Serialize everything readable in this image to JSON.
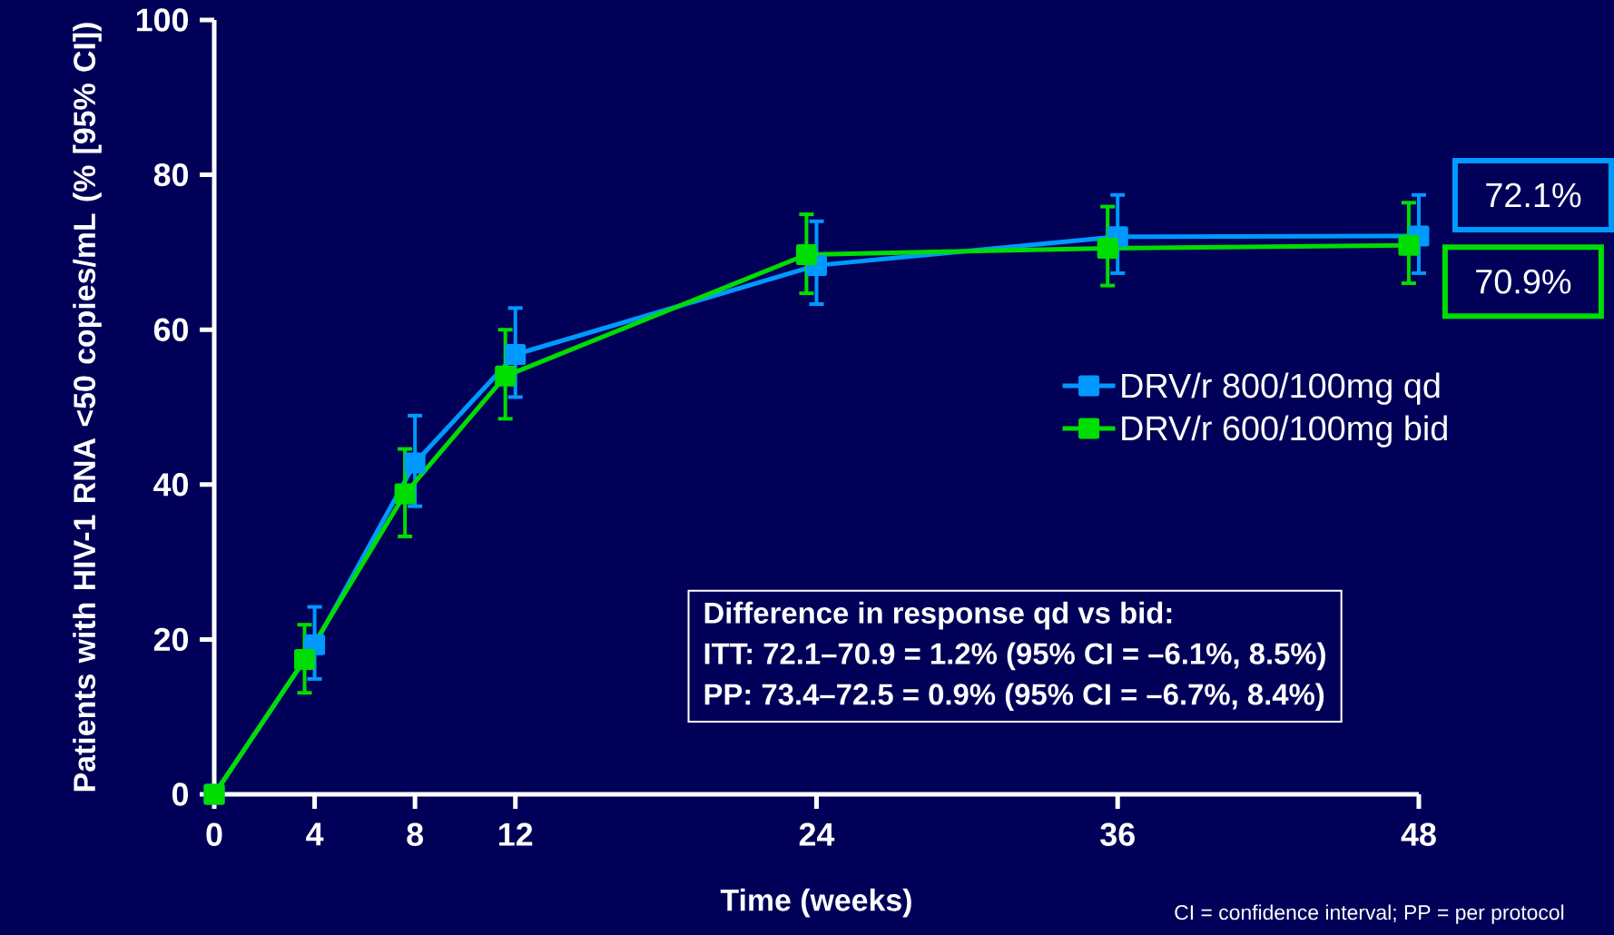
{
  "chart_data": {
    "type": "line",
    "xlabel": "Time (weeks)",
    "ylabel": "Patients with HIV-1 RNA <50 copies/mL (% [95% CI])",
    "xlim": [
      0,
      48
    ],
    "ylim": [
      0,
      100
    ],
    "xticks": [
      0,
      4,
      8,
      12,
      24,
      36,
      48
    ],
    "yticks": [
      0,
      20,
      40,
      60,
      80,
      100
    ],
    "legend": "right",
    "marker": "square",
    "line_style": "solid",
    "series": [
      {
        "name": "DRV/r 800/100mg qd",
        "color": "#0099ff",
        "x": [
          0,
          4,
          8,
          12,
          24,
          36,
          48
        ],
        "values": [
          0,
          19.3,
          42.8,
          56.8,
          68.3,
          72.0,
          72.1
        ],
        "errors": [
          null,
          [
            14.9,
            24.2
          ],
          [
            37.2,
            48.9
          ],
          [
            51.3,
            62.8
          ],
          [
            63.3,
            74.0
          ],
          [
            67.3,
            77.4
          ],
          [
            67.3,
            77.4
          ]
        ]
      },
      {
        "name": "DRV/r 600/100mg bid",
        "color": "#00dd00",
        "x": [
          0,
          3.6,
          7.6,
          11.6,
          23.6,
          35.6,
          47.6
        ],
        "values": [
          0,
          17.4,
          38.8,
          54.0,
          69.7,
          70.5,
          70.9
        ],
        "errors": [
          null,
          [
            13.1,
            21.9
          ],
          [
            33.3,
            44.6
          ],
          [
            48.5,
            60.0
          ],
          [
            64.7,
            74.9
          ],
          [
            65.7,
            75.9
          ],
          [
            66.0,
            76.4
          ]
        ]
      }
    ],
    "annotations": [
      {
        "text": "72.1%",
        "x": 48,
        "y": 72.1
      },
      {
        "text": "70.9%",
        "x": 47.6,
        "y": 70.9
      },
      "**Difference in response qd vs bid:**",
      "**ITT: 72.1–70.9 = 1.2% (95% CI = –6.1%, 8.5%)**",
      "**PP:  73.4–72.5 = 0.9% (95% CI = –6.7%, 8.4%)**",
      "CI = confidence interval; PP = per protocol"
    ]
  }
}
